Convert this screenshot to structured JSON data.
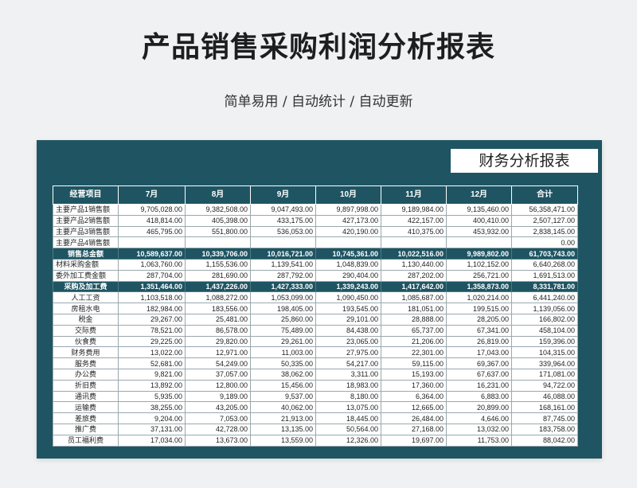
{
  "page": {
    "title": "产品销售采购利润分析报表",
    "subtitle": "简单易用 / 自动统计 / 自动更新"
  },
  "sheet": {
    "banner": "财务分析报表",
    "headers": [
      "经营项目",
      "7月",
      "8月",
      "9月",
      "10月",
      "11月",
      "12月",
      "合计"
    ],
    "rows": [
      {
        "label": "主要产品1销售额",
        "align": "lbl",
        "hl": false,
        "values": [
          "9,705,028.00",
          "9,382,508.00",
          "9,047,493.00",
          "9,897,998.00",
          "9,189,984.00",
          "9,135,460.00",
          "56,358,471.00"
        ]
      },
      {
        "label": "主要产品2销售额",
        "align": "lbl",
        "hl": false,
        "values": [
          "418,814.00",
          "405,398.00",
          "433,175.00",
          "427,173.00",
          "422,157.00",
          "400,410.00",
          "2,507,127.00"
        ]
      },
      {
        "label": "主要产品3销售额",
        "align": "lbl",
        "hl": false,
        "values": [
          "465,795.00",
          "551,800.00",
          "536,053.00",
          "420,190.00",
          "410,375.00",
          "453,932.00",
          "2,838,145.00"
        ]
      },
      {
        "label": "主要产品4销售额",
        "align": "lbl",
        "hl": false,
        "values": [
          "",
          "",
          "",
          "",
          "",
          "",
          "0.00"
        ]
      },
      {
        "label": "销售总金额",
        "align": "lbl",
        "hl": true,
        "values": [
          "10,589,637.00",
          "10,339,706.00",
          "10,016,721.00",
          "10,745,361.00",
          "10,022,516.00",
          "9,989,802.00",
          "61,703,743.00"
        ]
      },
      {
        "label": "材料采购金额",
        "align": "lbl",
        "hl": false,
        "values": [
          "1,063,760.00",
          "1,155,536.00",
          "1,139,541.00",
          "1,048,839.00",
          "1,130,440.00",
          "1,102,152.00",
          "6,640,268.00"
        ]
      },
      {
        "label": "委外加工费金额",
        "align": "lbl",
        "hl": false,
        "values": [
          "287,704.00",
          "281,690.00",
          "287,792.00",
          "290,404.00",
          "287,202.00",
          "256,721.00",
          "1,691,513.00"
        ]
      },
      {
        "label": "采购及加工费",
        "align": "lbl",
        "hl": true,
        "values": [
          "1,351,464.00",
          "1,437,226.00",
          "1,427,333.00",
          "1,339,243.00",
          "1,417,642.00",
          "1,358,873.00",
          "8,331,781.00"
        ]
      },
      {
        "label": "人工工资",
        "align": "ctr",
        "hl": false,
        "values": [
          "1,103,518.00",
          "1,088,272.00",
          "1,053,099.00",
          "1,090,450.00",
          "1,085,687.00",
          "1,020,214.00",
          "6,441,240.00"
        ]
      },
      {
        "label": "房租水电",
        "align": "ctr",
        "hl": false,
        "values": [
          "182,984.00",
          "183,556.00",
          "198,405.00",
          "193,545.00",
          "181,051.00",
          "199,515.00",
          "1,139,056.00"
        ]
      },
      {
        "label": "税金",
        "align": "ctr",
        "hl": false,
        "values": [
          "29,267.00",
          "25,481.00",
          "25,860.00",
          "29,101.00",
          "28,888.00",
          "28,205.00",
          "166,802.00"
        ]
      },
      {
        "label": "交际费",
        "align": "ctr",
        "hl": false,
        "values": [
          "78,521.00",
          "86,578.00",
          "75,489.00",
          "84,438.00",
          "65,737.00",
          "67,341.00",
          "458,104.00"
        ]
      },
      {
        "label": "伙食费",
        "align": "ctr",
        "hl": false,
        "values": [
          "29,225.00",
          "29,820.00",
          "29,261.00",
          "23,065.00",
          "21,206.00",
          "26,819.00",
          "159,396.00"
        ]
      },
      {
        "label": "财务费用",
        "align": "ctr",
        "hl": false,
        "values": [
          "13,022.00",
          "12,971.00",
          "11,003.00",
          "27,975.00",
          "22,301.00",
          "17,043.00",
          "104,315.00"
        ]
      },
      {
        "label": "服务费",
        "align": "ctr",
        "hl": false,
        "values": [
          "52,681.00",
          "54,249.00",
          "50,335.00",
          "54,217.00",
          "59,115.00",
          "69,367.00",
          "339,964.00"
        ]
      },
      {
        "label": "办公费",
        "align": "ctr",
        "hl": false,
        "values": [
          "9,821.00",
          "37,057.00",
          "38,062.00",
          "3,311.00",
          "15,193.00",
          "67,637.00",
          "171,081.00"
        ]
      },
      {
        "label": "折旧费",
        "align": "ctr",
        "hl": false,
        "values": [
          "13,892.00",
          "12,800.00",
          "15,456.00",
          "18,983.00",
          "17,360.00",
          "16,231.00",
          "94,722.00"
        ]
      },
      {
        "label": "通讯费",
        "align": "ctr",
        "hl": false,
        "values": [
          "5,935.00",
          "9,189.00",
          "9,537.00",
          "8,180.00",
          "6,364.00",
          "6,883.00",
          "46,088.00"
        ]
      },
      {
        "label": "运输费",
        "align": "ctr",
        "hl": false,
        "values": [
          "38,255.00",
          "43,205.00",
          "40,062.00",
          "13,075.00",
          "12,665.00",
          "20,899.00",
          "168,161.00"
        ]
      },
      {
        "label": "差旅费",
        "align": "ctr",
        "hl": false,
        "values": [
          "9,204.00",
          "7,053.00",
          "21,913.00",
          "18,445.00",
          "26,484.00",
          "4,646.00",
          "87,745.00"
        ]
      },
      {
        "label": "推广费",
        "align": "ctr",
        "hl": false,
        "values": [
          "37,131.00",
          "42,728.00",
          "13,135.00",
          "50,564.00",
          "27,168.00",
          "13,032.00",
          "183,758.00"
        ]
      },
      {
        "label": "员工福利费",
        "align": "ctr",
        "hl": false,
        "values": [
          "17,034.00",
          "13,673.00",
          "13,559.00",
          "12,326.00",
          "19,697.00",
          "11,753.00",
          "88,042.00"
        ]
      }
    ]
  }
}
